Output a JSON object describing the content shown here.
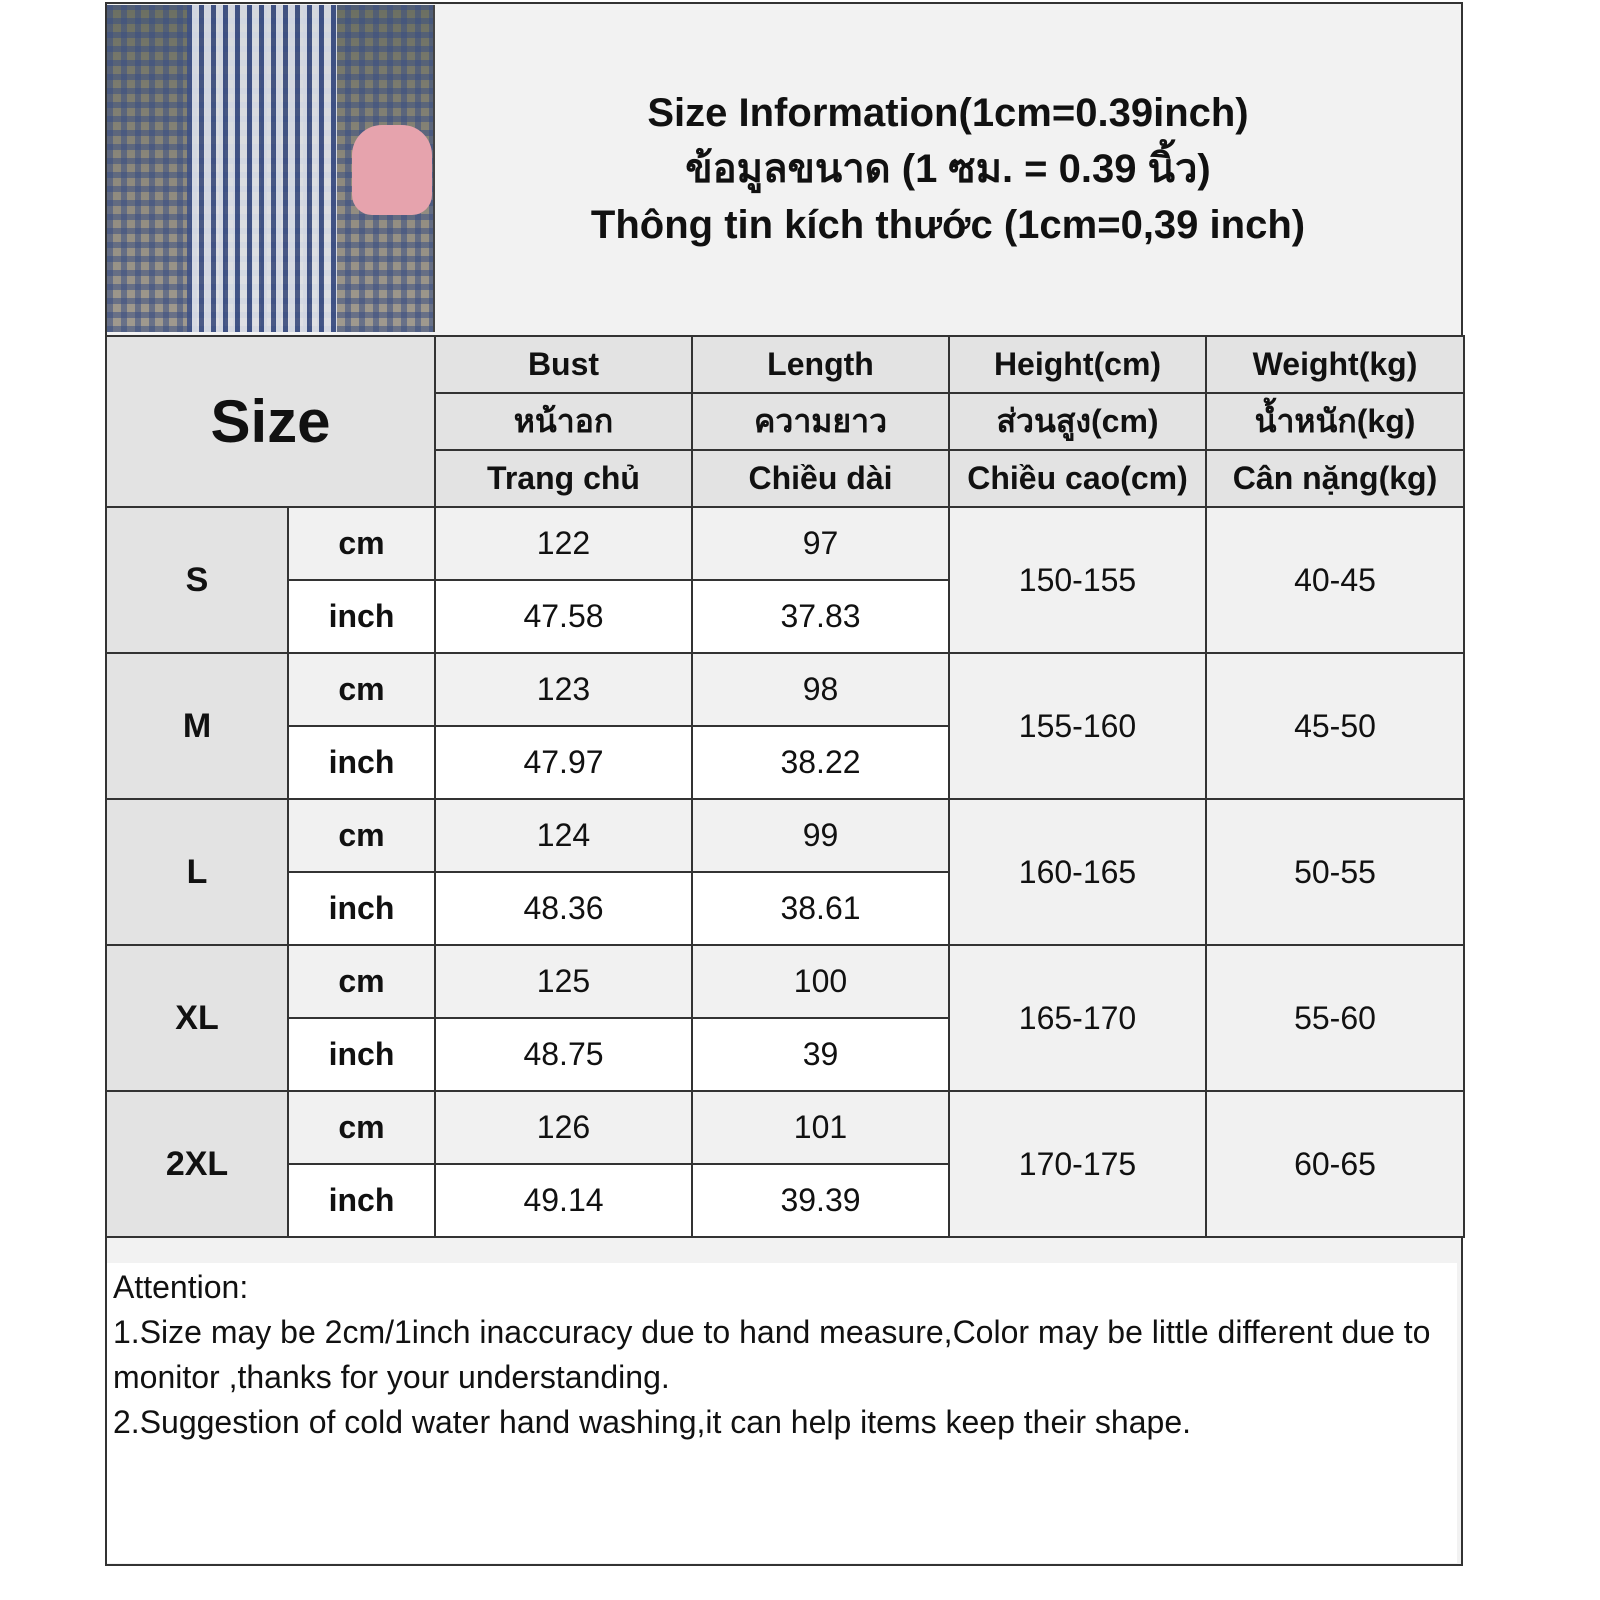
{
  "title": {
    "line1": "Size Information(1cm=0.39inch)",
    "line2": "ข้อมูลขนาด (1 ซม. = 0.39 นิ้ว)",
    "line3": "Thông tin kích thước (1cm=0,39 inch)"
  },
  "size_label": "Size",
  "headers": [
    {
      "en": "Bust",
      "th": "หน้าอก",
      "vi": "Trang chủ"
    },
    {
      "en": "Length",
      "th": "ความยาว",
      "vi": "Chiều dài"
    },
    {
      "en": "Height(cm)",
      "th": "ส่วนสูง(cm)",
      "vi": "Chiều cao(cm)"
    },
    {
      "en": "Weight(kg)",
      "th": "น้ำหนัก(kg)",
      "vi": "Cân nặng(kg)"
    }
  ],
  "units": {
    "cm": "cm",
    "inch": "inch"
  },
  "rows": [
    {
      "size": "S",
      "bust_cm": "122",
      "length_cm": "97",
      "bust_in": "47.58",
      "length_in": "37.83",
      "height": "150-155",
      "weight": "40-45"
    },
    {
      "size": "M",
      "bust_cm": "123",
      "length_cm": "98",
      "bust_in": "47.97",
      "length_in": "38.22",
      "height": "155-160",
      "weight": "45-50"
    },
    {
      "size": "L",
      "bust_cm": "124",
      "length_cm": "99",
      "bust_in": "48.36",
      "length_in": "38.61",
      "height": "160-165",
      "weight": "50-55"
    },
    {
      "size": "XL",
      "bust_cm": "125",
      "length_cm": "100",
      "bust_in": "48.75",
      "length_in": "39",
      "height": "165-170",
      "weight": "55-60"
    },
    {
      "size": "2XL",
      "bust_cm": "126",
      "length_cm": "101",
      "bust_in": "49.14",
      "length_in": "39.39",
      "height": "170-175",
      "weight": "60-65"
    }
  ],
  "notes": {
    "heading": "Attention:",
    "line1": "1.Size may be 2cm/1inch inaccuracy due to hand measure,Color may be little different due to monitor ,thanks for your understanding.",
    "line2": "2.Suggestion of cold water hand washing,it can help items keep their shape."
  }
}
